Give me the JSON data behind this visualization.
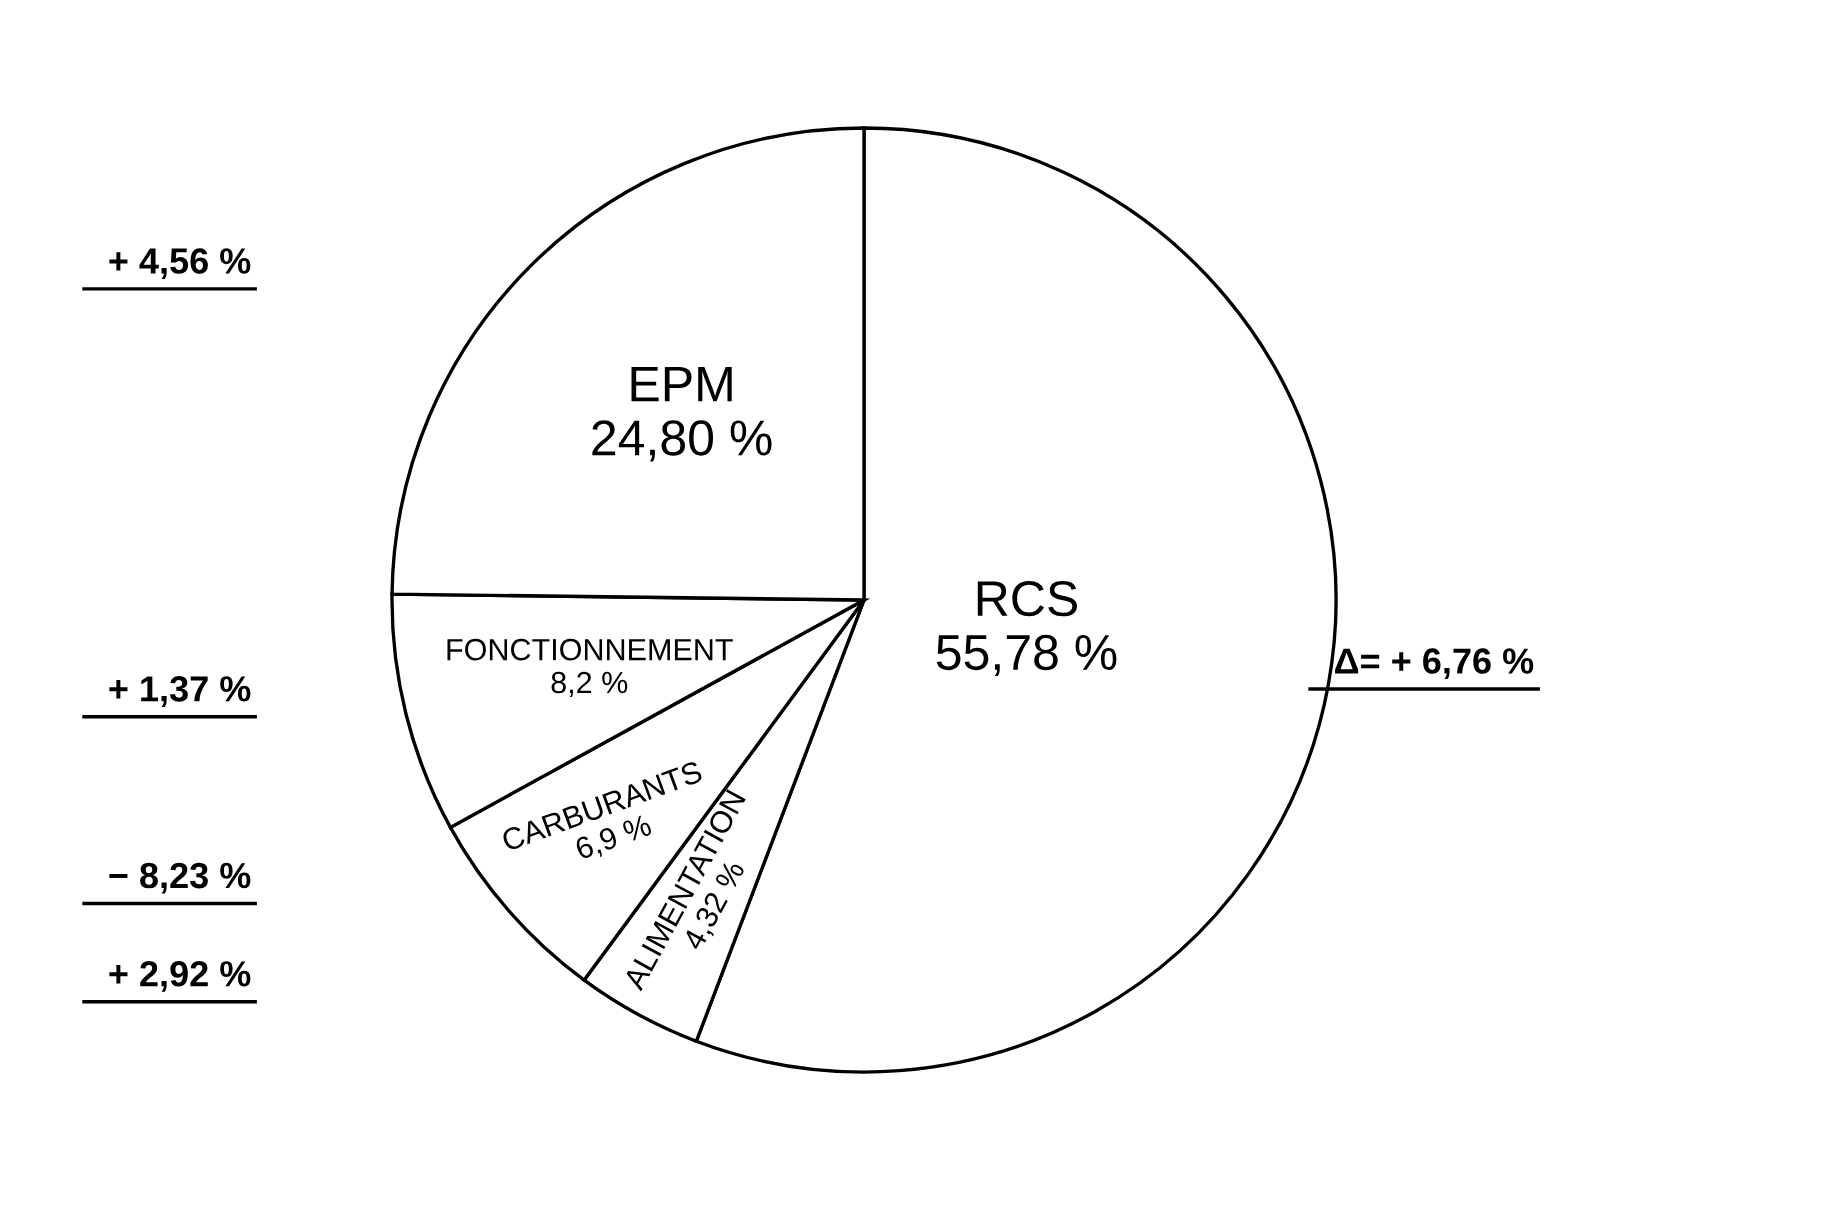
{
  "chart_data": {
    "type": "pie",
    "categories": [
      "RCS",
      "ALIMENTATION",
      "CARBURANTS",
      "FONCTIONNEMENT",
      "EPM"
    ],
    "values": [
      55.78,
      4.32,
      6.9,
      8.2,
      24.8
    ],
    "value_labels": [
      "55,78 %",
      "4,32 %",
      "6,9 %",
      "8,2 %",
      "24,80 %"
    ],
    "colors": [
      "#ffffff",
      "#ffffff",
      "#ffffff",
      "#ffffff",
      "#ffffff"
    ],
    "annotations": [
      "Δ= + 6,76 %",
      "+ 2,92 %",
      "− 8,23 %",
      "+ 1,37 %",
      "+ 4,56 %"
    ]
  }
}
